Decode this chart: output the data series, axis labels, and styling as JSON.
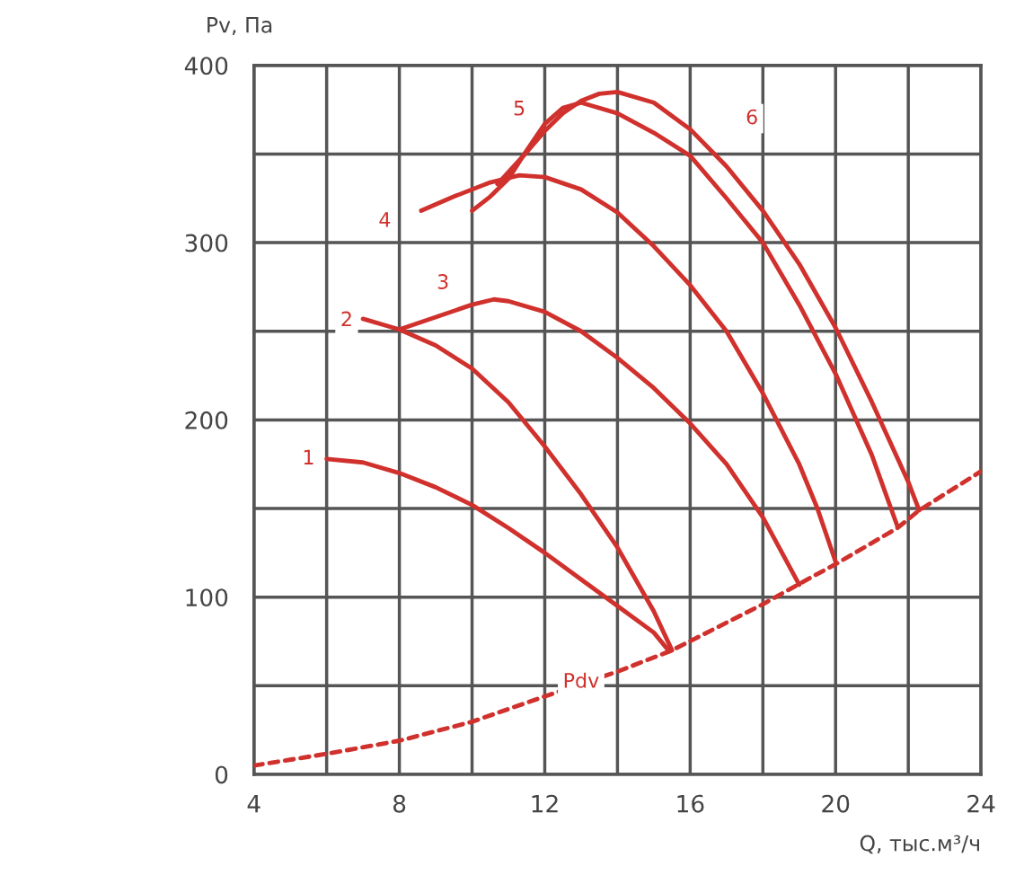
{
  "chart_data": {
    "type": "line",
    "xlabel": "Q, тыс.м³/ч",
    "ylabel": "Pv, Па",
    "series": [
      {
        "color": "#d0312d",
        "x": [
          6,
          7,
          8,
          9,
          10,
          11,
          12,
          13,
          14,
          15,
          15.4
        ],
        "values": [
          178,
          176,
          170,
          162,
          152,
          139,
          125,
          110,
          95,
          80,
          70
        ]
      },
      {
        "color": "#d0312d",
        "x": [
          7,
          8,
          9,
          10,
          11,
          12,
          13,
          14,
          15,
          15.5
        ],
        "values": [
          257,
          251,
          242,
          229,
          210,
          185,
          158,
          128,
          92,
          70
        ]
      },
      {
        "color": "#d0312d",
        "x": [
          8,
          9,
          10,
          10.6,
          11,
          12,
          13,
          14,
          15,
          16,
          17,
          18,
          19
        ],
        "values": [
          251,
          258,
          265,
          268,
          267,
          261,
          250,
          235,
          218,
          198,
          175,
          145,
          107
        ]
      },
      {
        "color": "#d0312d",
        "x": [
          8.6,
          9.5,
          10.5,
          11.3,
          12,
          13,
          14,
          15,
          16,
          17,
          18,
          19,
          19.5,
          20
        ],
        "values": [
          318,
          326,
          334,
          338,
          337,
          330,
          317,
          298,
          276,
          250,
          215,
          175,
          150,
          120
        ]
      },
      {
        "color": "#d0312d",
        "x": [
          10,
          10.5,
          11,
          11.5,
          12,
          12.5,
          13,
          14,
          15,
          16,
          17,
          18,
          19,
          20,
          21,
          21.7
        ],
        "values": [
          318,
          326,
          336,
          352,
          367,
          376,
          379,
          373,
          362,
          349,
          325,
          300,
          265,
          226,
          180,
          140
        ]
      },
      {
        "color": "#d0312d",
        "x": [
          10.7,
          11.5,
          12,
          12.5,
          13,
          13.5,
          14,
          15,
          16,
          17,
          18,
          19,
          20,
          21,
          22,
          22.3
        ],
        "values": [
          333,
          351,
          363,
          373,
          380,
          384,
          385,
          379,
          364,
          343,
          318,
          288,
          252,
          210,
          165,
          149
        ]
      },
      {
        "color": "#d0312d",
        "line_style": "dashed",
        "x": [
          4,
          6,
          8,
          10,
          12,
          14,
          15.5,
          18,
          19,
          20,
          21.7,
          22.3,
          24
        ],
        "values": [
          5,
          11.6,
          19,
          29.7,
          44,
          58,
          70,
          96,
          107.5,
          118.6,
          139,
          149,
          171
        ]
      }
    ],
    "annotations": [
      {
        "text": "1",
        "x": 5.5,
        "y": 178
      },
      {
        "text": "2",
        "x": 6.55,
        "y": 256
      },
      {
        "text": "3",
        "x": 9.2,
        "y": 277
      },
      {
        "text": "4",
        "x": 7.6,
        "y": 312
      },
      {
        "text": "5",
        "x": 11.3,
        "y": 375
      },
      {
        "text": "6",
        "x": 17.7,
        "y": 370
      },
      {
        "text": "Pdv",
        "x": 13,
        "y": 52
      }
    ],
    "xlim": [
      4,
      24
    ],
    "ylim": [
      0,
      400
    ],
    "xticks": [
      4,
      {
        "value": 6,
        "label": null
      },
      8,
      {
        "value": 10,
        "label": null
      },
      12,
      {
        "value": 14,
        "label": null
      },
      16,
      {
        "value": 18,
        "label": null
      },
      20,
      {
        "value": 22,
        "label": null
      },
      24
    ],
    "yticks": [
      0,
      {
        "value": 50,
        "label": null
      },
      100,
      {
        "value": 150,
        "label": null
      },
      200,
      {
        "value": 250,
        "label": null
      },
      300,
      {
        "value": 350,
        "label": null
      },
      400
    ],
    "grid": true,
    "legend": false
  }
}
